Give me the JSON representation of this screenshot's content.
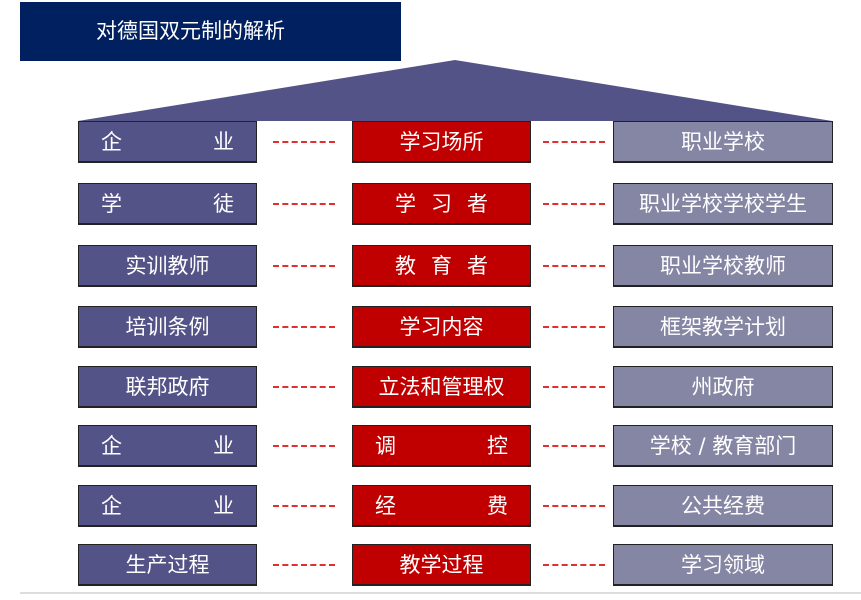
{
  "title": "对德国双元制的解析",
  "colors": {
    "title_bg": "#002060",
    "left": "#545388",
    "middle": "#c00000",
    "right": "#8486a3",
    "roof": "#545388",
    "connector": "#e03030"
  },
  "rows": [
    {
      "left": "企业",
      "middle": "学习场所",
      "right": "职业学校"
    },
    {
      "left": "学徒",
      "middle": "学习者",
      "right": "职业学校学校学生"
    },
    {
      "left": "实训教师",
      "middle": "教育者",
      "right": "职业学校教师"
    },
    {
      "left": "培训条例",
      "middle": "学习内容",
      "right": "框架教学计划"
    },
    {
      "left": "联邦政府",
      "middle": "立法和管理权",
      "right": "州政府"
    },
    {
      "left": "企业",
      "middle": "调控",
      "right": "学校 / 教育部门"
    },
    {
      "left": "企业",
      "middle": "经费",
      "right": "公共经费"
    },
    {
      "left": "生产过程",
      "middle": "教学过程",
      "right": "学习领域"
    }
  ],
  "connector": "– – –"
}
